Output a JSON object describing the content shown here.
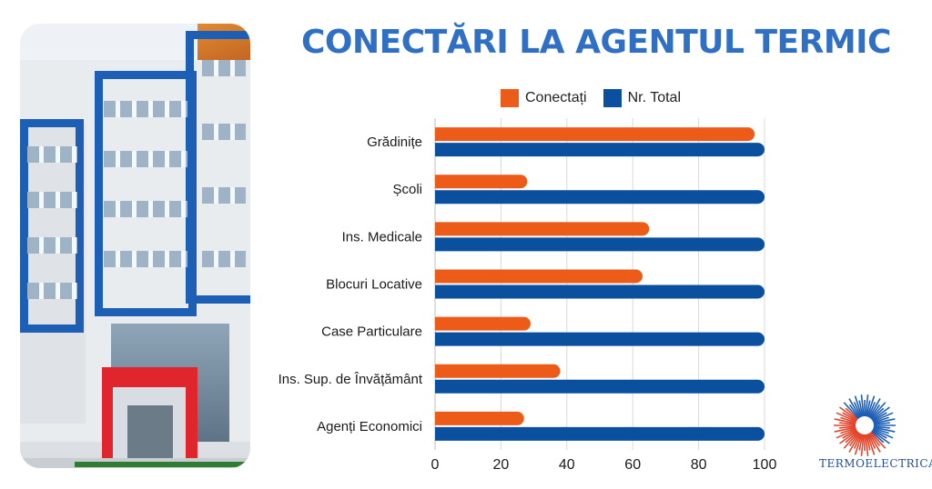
{
  "title": "CONECTĂRI LA AGENTUL TERMIC",
  "colors": {
    "connected": "#ec5b17",
    "total": "#0b4f9f",
    "title": "#2f6fc4",
    "grid": "#d9d9d9"
  },
  "legend": [
    {
      "label": "Conectați",
      "color": "#ec5b17"
    },
    {
      "label": "Nr. Total",
      "color": "#0b4f9f"
    }
  ],
  "chart_data": {
    "type": "bar",
    "orientation": "horizontal",
    "title": "CONECTĂRI LA AGENTUL TERMIC",
    "categories": [
      "Grădinițe",
      "Școli",
      "Ins. Medicale",
      "Blocuri Locative",
      "Case Particulare",
      "Ins. Sup. de Învățământ",
      "Agenți Economici"
    ],
    "series": [
      {
        "name": "Conectați",
        "values": [
          97,
          28,
          65,
          63,
          29,
          38,
          27
        ]
      },
      {
        "name": "Nr. Total",
        "values": [
          100,
          100,
          100,
          100,
          100,
          100,
          100
        ]
      }
    ],
    "xlim": [
      0,
      100
    ],
    "xticks": [
      0,
      20,
      40,
      60,
      80,
      100
    ],
    "grid": true,
    "legend_position": "top"
  },
  "logo": {
    "text": "TERMOELECTRICA-S-A-"
  }
}
